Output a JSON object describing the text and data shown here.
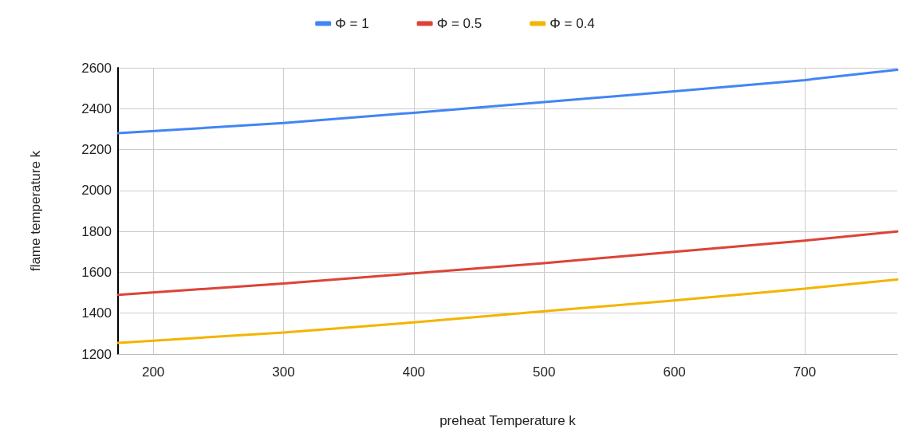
{
  "chart_data": {
    "type": "line",
    "xlabel": "preheat Temperature k",
    "ylabel": "flame temperature k",
    "x": [
      173,
      300,
      400,
      500,
      600,
      700,
      771
    ],
    "series": [
      {
        "name": "Φ = 1",
        "color": "#4285f4",
        "values": [
          2280,
          2330,
          2380,
          2432,
          2485,
          2540,
          2590
        ]
      },
      {
        "name": "Φ = 0.5",
        "color": "#db4437",
        "values": [
          1490,
          1545,
          1595,
          1645,
          1700,
          1755,
          1800
        ]
      },
      {
        "name": "Φ = 0.4",
        "color": "#f4b400",
        "values": [
          1255,
          1305,
          1355,
          1410,
          1462,
          1520,
          1565
        ]
      }
    ],
    "xlim": [
      173,
      771
    ],
    "xticks": [
      200,
      300,
      400,
      500,
      600,
      700
    ],
    "ylim": [
      1200,
      2600
    ],
    "yticks": [
      1200,
      1400,
      1600,
      1800,
      2000,
      2200,
      2400,
      2600
    ],
    "grid": true,
    "legend": "top",
    "marker": "none",
    "line_style": "solid"
  }
}
